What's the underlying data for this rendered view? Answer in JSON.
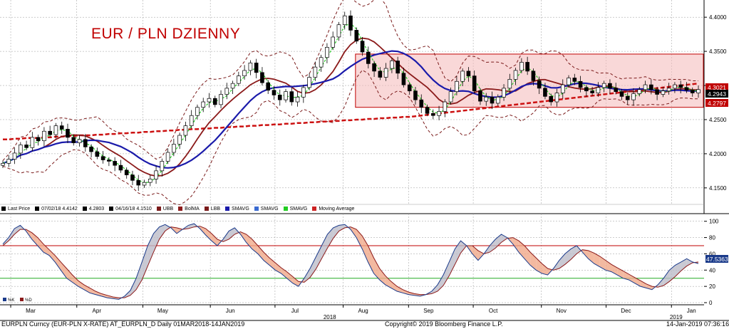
{
  "chart_data": [
    {
      "type": "candlestick",
      "title": "EUR / PLN DZIENNY",
      "ylim": [
        4.13,
        4.42
      ],
      "y_ticks": [
        "4.4000",
        "4.3500",
        "4.3000",
        "4.2500",
        "4.2000",
        "4.1500"
      ],
      "x_month_labels": [
        "Mar",
        "Apr",
        "May",
        "Jun",
        "Jul",
        "Aug",
        "Sep",
        "Oct",
        "Nov",
        "Dec",
        "Jan"
      ],
      "x_year_labels": [
        "2018",
        "2019"
      ],
      "last_price": "4.2943",
      "price_tags": [
        "4.3021",
        "4.2797"
      ],
      "range_box": {
        "y_top": 4.346,
        "y_bottom": 4.268,
        "x_start": "Aug",
        "x_end": "Jan"
      },
      "legend": [
        {
          "label": "Last Price",
          "color": "#000000"
        },
        {
          "label": "07/02/18 4.4142",
          "color": "#000000"
        },
        {
          "label": "4.2803",
          "color": "#000000"
        },
        {
          "label": "04/16/18 4.1510",
          "color": "#000000"
        },
        {
          "label": "UBB",
          "color": "#7a1a1a"
        },
        {
          "label": "BolMA",
          "color": "#8b1a1a"
        },
        {
          "label": "LBB",
          "color": "#7a1a1a"
        },
        {
          "label": "SMAVG",
          "color": "#1a1aaa"
        },
        {
          "label": "SMAVG",
          "color": "#3a6ad0"
        },
        {
          "label": "SMAVG",
          "color": "#22cc22"
        },
        {
          "label": "Moving Average",
          "color": "#cc2222"
        }
      ],
      "series_keys": {
        "close": [
          4.186,
          4.192,
          4.201,
          4.213,
          4.209,
          4.224,
          4.219,
          4.233,
          4.228,
          4.241,
          4.236,
          4.224,
          4.216,
          4.221,
          4.21,
          4.203,
          4.196,
          4.191,
          4.189,
          4.183,
          4.176,
          4.169,
          4.161,
          4.154,
          4.158,
          4.163,
          4.175,
          4.189,
          4.202,
          4.214,
          4.227,
          4.241,
          4.256,
          4.268,
          4.276,
          4.281,
          4.272,
          4.287,
          4.296,
          4.303,
          4.314,
          4.322,
          4.333,
          4.319,
          4.304,
          4.293,
          4.286,
          4.279,
          4.291,
          4.276,
          4.283,
          4.297,
          4.312,
          4.327,
          4.341,
          4.356,
          4.371,
          4.389,
          4.402,
          4.381,
          4.365,
          4.349,
          4.332,
          4.321,
          4.312,
          4.325,
          4.336,
          4.318,
          4.301,
          4.292,
          4.279,
          4.268,
          4.259,
          4.256,
          4.262,
          4.276,
          4.291,
          4.306,
          4.321,
          4.314,
          4.292,
          4.277,
          4.283,
          4.274,
          4.283,
          4.296,
          4.309,
          4.322,
          4.334,
          4.321,
          4.307,
          4.296,
          4.284,
          4.276,
          4.289,
          4.301,
          4.311,
          4.306,
          4.297,
          4.292,
          4.289,
          4.297,
          4.303,
          4.296,
          4.291,
          4.284,
          4.279,
          4.288,
          4.294,
          4.301,
          4.294,
          4.287,
          4.292,
          4.296,
          4.301,
          4.297,
          4.293,
          4.289,
          4.294
        ],
        "sma_slow": [
          4.221,
          4.221,
          4.222,
          4.222,
          4.223,
          4.223,
          4.223,
          4.224,
          4.224,
          4.225,
          4.225,
          4.226,
          4.226,
          4.227,
          4.227,
          4.227,
          4.228,
          4.228,
          4.229,
          4.229,
          4.23,
          4.23,
          4.231,
          4.231,
          4.232,
          4.232,
          4.233,
          4.233,
          4.234,
          4.234,
          4.235,
          4.235,
          4.236,
          4.236,
          4.237,
          4.237,
          4.238,
          4.238,
          4.239,
          4.239,
          4.24,
          4.24,
          4.241,
          4.241,
          4.242,
          4.242,
          4.243,
          4.243,
          4.244,
          4.244,
          4.245,
          4.245,
          4.246,
          4.246,
          4.247,
          4.247,
          4.248,
          4.248,
          4.249,
          4.249,
          4.25,
          4.25,
          4.251,
          4.251,
          4.252,
          4.252,
          4.253,
          4.253,
          4.254,
          4.254,
          4.255,
          4.256,
          4.257,
          4.258,
          4.259,
          4.26,
          4.261,
          4.262,
          4.263,
          4.264,
          4.265,
          4.266,
          4.267,
          4.268,
          4.269,
          4.27,
          4.271,
          4.272,
          4.273,
          4.274,
          4.275,
          4.276,
          4.277,
          4.278,
          4.279,
          4.28,
          4.281,
          4.282,
          4.283,
          4.284,
          4.285,
          4.286,
          4.287,
          4.288,
          4.289,
          4.29,
          4.291,
          4.292,
          4.293,
          4.294,
          4.295,
          4.296,
          4.297,
          4.298,
          4.299,
          4.3,
          4.301,
          4.302,
          4.303
        ]
      }
    },
    {
      "type": "line",
      "ylim": [
        0,
        105
      ],
      "y_ticks": [
        "100",
        "80",
        "60",
        "40",
        "20",
        "0"
      ],
      "last_value": "47.5363",
      "legend": [
        {
          "label": "%K",
          "color": "#1a3a8a"
        },
        {
          "label": "%D",
          "color": "#8b1a1a"
        }
      ],
      "series_keys": {
        "k": [
          72,
          80,
          91,
          95,
          88,
          78,
          70,
          62,
          58,
          50,
          40,
          30,
          25,
          20,
          16,
          12,
          10,
          8,
          6,
          5,
          4,
          8,
          15,
          30,
          50,
          70,
          85,
          93,
          96,
          92,
          85,
          90,
          95,
          97,
          91,
          83,
          76,
          70,
          78,
          88,
          92,
          84,
          74,
          66,
          60,
          52,
          46,
          40,
          36,
          30,
          24,
          20,
          30,
          42,
          56,
          70,
          84,
          92,
          95,
          96,
          90,
          80,
          66,
          50,
          36,
          28,
          22,
          18,
          14,
          12,
          10,
          9,
          8,
          10,
          14,
          22,
          34,
          50,
          66,
          76,
          70,
          60,
          52,
          60,
          70,
          78,
          84,
          80,
          72,
          62,
          54,
          46,
          40,
          36,
          34,
          42,
          52,
          60,
          66,
          70,
          62,
          54,
          48,
          44,
          40,
          38,
          34,
          30,
          28,
          24,
          20,
          18,
          16,
          22,
          30,
          40,
          46,
          50,
          54,
          50,
          48
        ],
        "d": [
          70,
          76,
          84,
          90,
          90,
          86,
          80,
          72,
          65,
          58,
          50,
          42,
          34,
          27,
          22,
          18,
          14,
          11,
          9,
          7,
          6,
          6,
          9,
          16,
          28,
          45,
          62,
          78,
          88,
          93,
          92,
          90,
          91,
          93,
          94,
          91,
          85,
          78,
          75,
          78,
          84,
          87,
          84,
          78,
          70,
          62,
          55,
          49,
          43,
          38,
          32,
          26,
          25,
          31,
          41,
          54,
          67,
          79,
          88,
          92,
          93,
          90,
          82,
          70,
          55,
          42,
          33,
          26,
          20,
          16,
          13,
          11,
          10,
          10,
          11,
          14,
          21,
          33,
          47,
          61,
          70,
          70,
          64,
          60,
          62,
          67,
          74,
          79,
          80,
          76,
          70,
          62,
          55,
          48,
          42,
          40,
          42,
          47,
          53,
          60,
          65,
          64,
          61,
          57,
          52,
          47,
          43,
          39,
          35,
          31,
          27,
          23,
          20,
          19,
          21,
          26,
          32,
          39,
          45,
          49,
          50
        ]
      },
      "bands": [
        70,
        30
      ]
    }
  ],
  "footer": {
    "left": "EURPLN Curncy (EUR-PLN X-RATE) AT_EURPLN_D  Daily 01MAR2018-14JAN2019",
    "center": "Copyright© 2019 Bloomberg Finance L.P.",
    "right": "14-Jan-2019 07:36:16"
  }
}
